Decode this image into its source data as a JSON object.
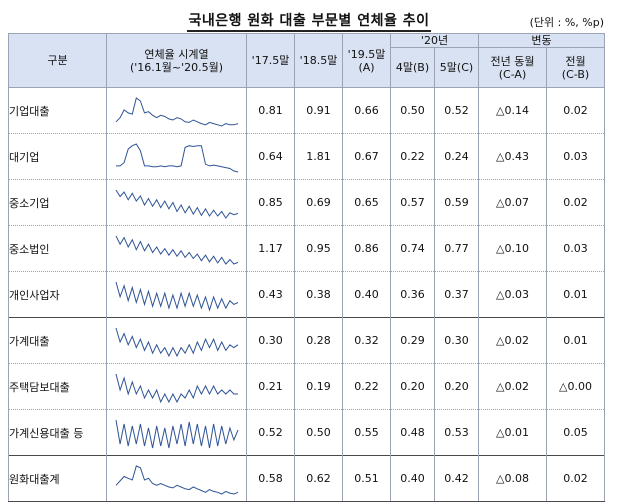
{
  "title": "국내은행 원화 대출 부문별 연체율 추이",
  "unit": "(단위 : %, %p)",
  "headers": {
    "category": "구분",
    "sparkline": "연체율 시계열",
    "sparkline_range": "('16.1월~'20.5월)",
    "c1": "'17.5말",
    "c2": "'18.5말",
    "c3": "'19.5말",
    "c3_sub": "(A)",
    "y20": "'20년",
    "c4": "4말(B)",
    "c5": "5말(C)",
    "change": "변동",
    "c6": "전년 동월",
    "c6_sub": "(C-A)",
    "c7": "전월",
    "c7_sub": "(C-B)"
  },
  "rows": [
    {
      "label": "기업대출",
      "level": 0,
      "v1": "0.81",
      "v2": "0.91",
      "v3": "0.66",
      "v4": "0.50",
      "v5": "0.52",
      "v6": "△0.14",
      "v7": "0.02",
      "series": [
        0.55,
        0.62,
        0.75,
        0.7,
        0.68,
        0.95,
        0.9,
        0.7,
        0.72,
        0.66,
        0.62,
        0.66,
        0.64,
        0.6,
        0.58,
        0.62,
        0.6,
        0.55,
        0.54,
        0.58,
        0.55,
        0.52,
        0.5,
        0.54,
        0.52,
        0.5,
        0.48,
        0.52,
        0.5,
        0.5,
        0.52
      ]
    },
    {
      "label": "대기업",
      "level": 1,
      "v1": "0.64",
      "v2": "1.81",
      "v3": "0.67",
      "v4": "0.22",
      "v5": "0.24",
      "v6": "△0.43",
      "v7": "0.03",
      "series": [
        0.6,
        0.6,
        0.8,
        1.6,
        1.8,
        1.9,
        1.5,
        0.6,
        0.6,
        0.55,
        0.55,
        0.6,
        0.55,
        0.6,
        0.6,
        0.55,
        0.6,
        1.7,
        1.8,
        1.75,
        1.8,
        1.8,
        0.7,
        0.6,
        0.65,
        0.6,
        0.55,
        0.5,
        0.45,
        0.3,
        0.24
      ]
    },
    {
      "label": "중소기업",
      "level": 1,
      "v1": "0.85",
      "v2": "0.69",
      "v3": "0.65",
      "v4": "0.57",
      "v5": "0.59",
      "v6": "△0.07",
      "v7": "0.02",
      "series": [
        0.95,
        0.85,
        0.92,
        0.8,
        0.9,
        0.78,
        0.86,
        0.72,
        0.82,
        0.7,
        0.8,
        0.68,
        0.78,
        0.66,
        0.76,
        0.62,
        0.72,
        0.6,
        0.7,
        0.58,
        0.68,
        0.56,
        0.66,
        0.55,
        0.64,
        0.55,
        0.62,
        0.52,
        0.6,
        0.57,
        0.59
      ]
    },
    {
      "label": "중소법인",
      "level": 2,
      "v1": "1.17",
      "v2": "0.95",
      "v3": "0.86",
      "v4": "0.74",
      "v5": "0.77",
      "v6": "△0.10",
      "v7": "0.03",
      "series": [
        1.25,
        1.1,
        1.22,
        1.05,
        1.18,
        1.0,
        1.15,
        0.98,
        1.1,
        0.95,
        1.05,
        0.92,
        1.02,
        0.9,
        1.0,
        0.88,
        0.98,
        0.86,
        0.95,
        0.84,
        0.92,
        0.8,
        0.9,
        0.78,
        0.88,
        0.76,
        0.86,
        0.74,
        0.82,
        0.74,
        0.77
      ]
    },
    {
      "label": "개인사업자",
      "level": 2,
      "v1": "0.43",
      "v2": "0.38",
      "v3": "0.40",
      "v4": "0.36",
      "v5": "0.37",
      "v6": "△0.03",
      "v7": "0.01",
      "series": [
        0.48,
        0.4,
        0.46,
        0.38,
        0.45,
        0.37,
        0.44,
        0.36,
        0.43,
        0.35,
        0.42,
        0.35,
        0.42,
        0.34,
        0.41,
        0.34,
        0.42,
        0.35,
        0.42,
        0.35,
        0.41,
        0.34,
        0.4,
        0.33,
        0.4,
        0.34,
        0.39,
        0.34,
        0.38,
        0.36,
        0.37
      ]
    },
    {
      "label": "가계대출",
      "level": 0,
      "v1": "0.30",
      "v2": "0.28",
      "v3": "0.32",
      "v4": "0.29",
      "v5": "0.30",
      "v6": "△0.02",
      "v7": "0.01",
      "series": [
        0.36,
        0.31,
        0.34,
        0.3,
        0.33,
        0.29,
        0.32,
        0.28,
        0.31,
        0.27,
        0.3,
        0.27,
        0.29,
        0.26,
        0.29,
        0.26,
        0.29,
        0.27,
        0.3,
        0.27,
        0.31,
        0.28,
        0.32,
        0.29,
        0.32,
        0.28,
        0.31,
        0.28,
        0.3,
        0.29,
        0.3
      ]
    },
    {
      "label": "주택담보대출",
      "level": 1,
      "v1": "0.21",
      "v2": "0.19",
      "v3": "0.22",
      "v4": "0.20",
      "v5": "0.20",
      "v6": "△0.02",
      "v7": "△0.00",
      "series": [
        0.25,
        0.21,
        0.24,
        0.2,
        0.23,
        0.2,
        0.22,
        0.19,
        0.21,
        0.19,
        0.21,
        0.18,
        0.2,
        0.18,
        0.2,
        0.18,
        0.2,
        0.19,
        0.21,
        0.19,
        0.22,
        0.2,
        0.22,
        0.2,
        0.22,
        0.2,
        0.21,
        0.2,
        0.21,
        0.2,
        0.2
      ]
    },
    {
      "label": "가계신용대출 등",
      "level": 1,
      "v1": "0.52",
      "v2": "0.50",
      "v3": "0.55",
      "v4": "0.48",
      "v5": "0.53",
      "v6": "△0.01",
      "v7": "0.05",
      "series": [
        0.58,
        0.46,
        0.56,
        0.45,
        0.55,
        0.46,
        0.56,
        0.45,
        0.54,
        0.44,
        0.55,
        0.45,
        0.54,
        0.44,
        0.55,
        0.46,
        0.56,
        0.45,
        0.57,
        0.46,
        0.56,
        0.45,
        0.55,
        0.44,
        0.56,
        0.45,
        0.55,
        0.46,
        0.54,
        0.48,
        0.53
      ]
    },
    {
      "label": "원화대출계",
      "level": 0,
      "v1": "0.58",
      "v2": "0.62",
      "v3": "0.51",
      "v4": "0.40",
      "v5": "0.42",
      "v6": "△0.08",
      "v7": "0.02",
      "series": [
        0.5,
        0.55,
        0.6,
        0.58,
        0.56,
        0.72,
        0.7,
        0.56,
        0.58,
        0.52,
        0.5,
        0.52,
        0.5,
        0.48,
        0.47,
        0.5,
        0.48,
        0.46,
        0.45,
        0.48,
        0.46,
        0.44,
        0.42,
        0.45,
        0.43,
        0.42,
        0.4,
        0.43,
        0.41,
        0.4,
        0.42
      ]
    }
  ],
  "colors": {
    "header_bg": "#d9e2f3",
    "line": "#2f5496"
  }
}
